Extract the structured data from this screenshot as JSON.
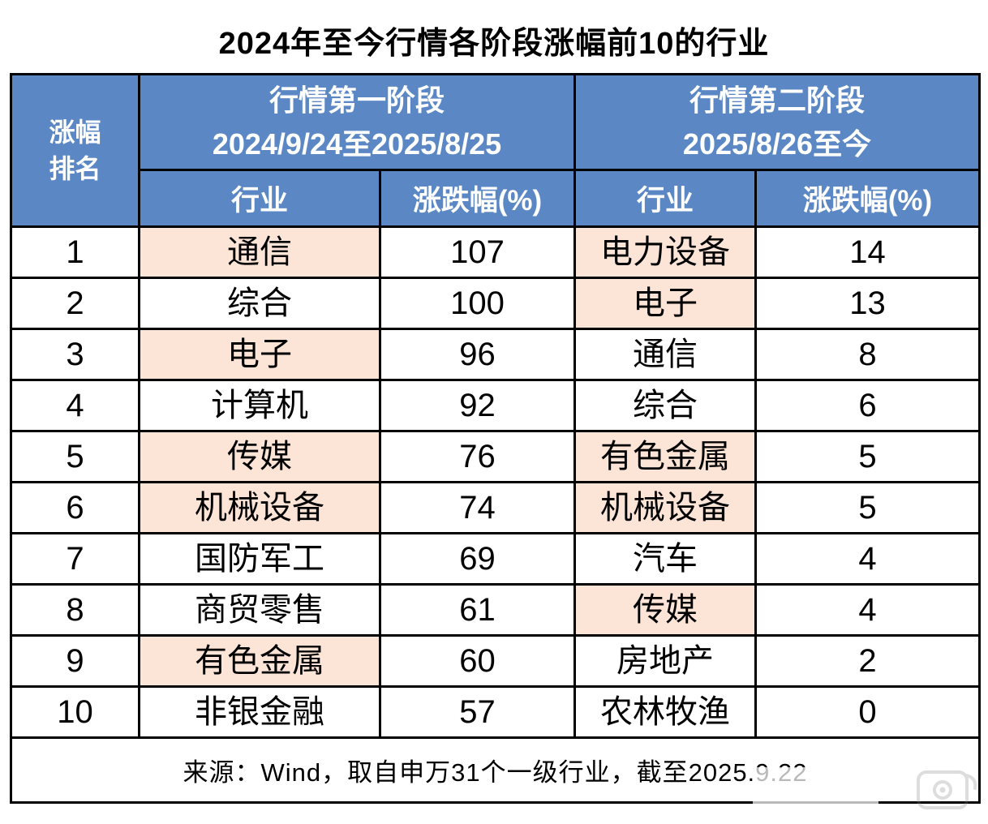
{
  "title": "2024年至今行情各阶段涨幅前10的行业",
  "table": {
    "rank_header": "涨幅\n排名",
    "groups": [
      {
        "name": "行情第一阶段",
        "dates": "2024/9/24至2025/8/25",
        "industry_header": "行业",
        "change_header": "涨跌幅(%)"
      },
      {
        "name": "行情第二阶段",
        "dates": "2025/8/26至今",
        "industry_header": "行业",
        "change_header": "涨跌幅(%)"
      }
    ],
    "rows": [
      {
        "rank": "1",
        "p1_industry": "通信",
        "p1_change": "107",
        "p1_highlight": true,
        "p2_industry": "电力设备",
        "p2_change": "14",
        "p2_highlight": true
      },
      {
        "rank": "2",
        "p1_industry": "综合",
        "p1_change": "100",
        "p1_highlight": false,
        "p2_industry": "电子",
        "p2_change": "13",
        "p2_highlight": true
      },
      {
        "rank": "3",
        "p1_industry": "电子",
        "p1_change": "96",
        "p1_highlight": true,
        "p2_industry": "通信",
        "p2_change": "8",
        "p2_highlight": false
      },
      {
        "rank": "4",
        "p1_industry": "计算机",
        "p1_change": "92",
        "p1_highlight": false,
        "p2_industry": "综合",
        "p2_change": "6",
        "p2_highlight": false
      },
      {
        "rank": "5",
        "p1_industry": "传媒",
        "p1_change": "76",
        "p1_highlight": true,
        "p2_industry": "有色金属",
        "p2_change": "5",
        "p2_highlight": true
      },
      {
        "rank": "6",
        "p1_industry": "机械设备",
        "p1_change": "74",
        "p1_highlight": true,
        "p2_industry": "机械设备",
        "p2_change": "5",
        "p2_highlight": true
      },
      {
        "rank": "7",
        "p1_industry": "国防军工",
        "p1_change": "69",
        "p1_highlight": false,
        "p2_industry": "汽车",
        "p2_change": "4",
        "p2_highlight": false
      },
      {
        "rank": "8",
        "p1_industry": "商贸零售",
        "p1_change": "61",
        "p1_highlight": false,
        "p2_industry": "传媒",
        "p2_change": "4",
        "p2_highlight": true
      },
      {
        "rank": "9",
        "p1_industry": "有色金属",
        "p1_change": "60",
        "p1_highlight": true,
        "p2_industry": "房地产",
        "p2_change": "2",
        "p2_highlight": false
      },
      {
        "rank": "10",
        "p1_industry": "非银金融",
        "p1_change": "57",
        "p1_highlight": false,
        "p2_industry": "农林牧渔",
        "p2_change": "0",
        "p2_highlight": false
      }
    ]
  },
  "footer": "来源：Wind，取自申万31个一级行业，截至2025.9.22",
  "colors": {
    "header_bg": "#5B88C4",
    "header_text": "#FFFFFF",
    "highlight_bg": "#FCE4D6",
    "border": "#000000",
    "text": "#000000",
    "background": "#FFFFFF"
  },
  "chart_data": {
    "type": "table",
    "title": "2024年至今行情各阶段涨幅前10的行业",
    "series": [
      {
        "name": "行情第一阶段 2024/9/24至2025/8/25",
        "industries": [
          "通信",
          "综合",
          "电子",
          "计算机",
          "传媒",
          "机械设备",
          "国防军工",
          "商贸零售",
          "有色金属",
          "非银金融"
        ],
        "values": [
          107,
          100,
          96,
          92,
          76,
          74,
          69,
          61,
          60,
          57
        ]
      },
      {
        "name": "行情第二阶段 2025/8/26至今",
        "industries": [
          "电力设备",
          "电子",
          "通信",
          "综合",
          "有色金属",
          "机械设备",
          "汽车",
          "传媒",
          "房地产",
          "农林牧渔"
        ],
        "values": [
          14,
          13,
          8,
          6,
          5,
          5,
          4,
          4,
          2,
          0
        ]
      }
    ],
    "highlight_meaning_color": "#FCE4D6",
    "source_note": "来源：Wind，取自申万31个一级行业，截至2025.9.22"
  }
}
